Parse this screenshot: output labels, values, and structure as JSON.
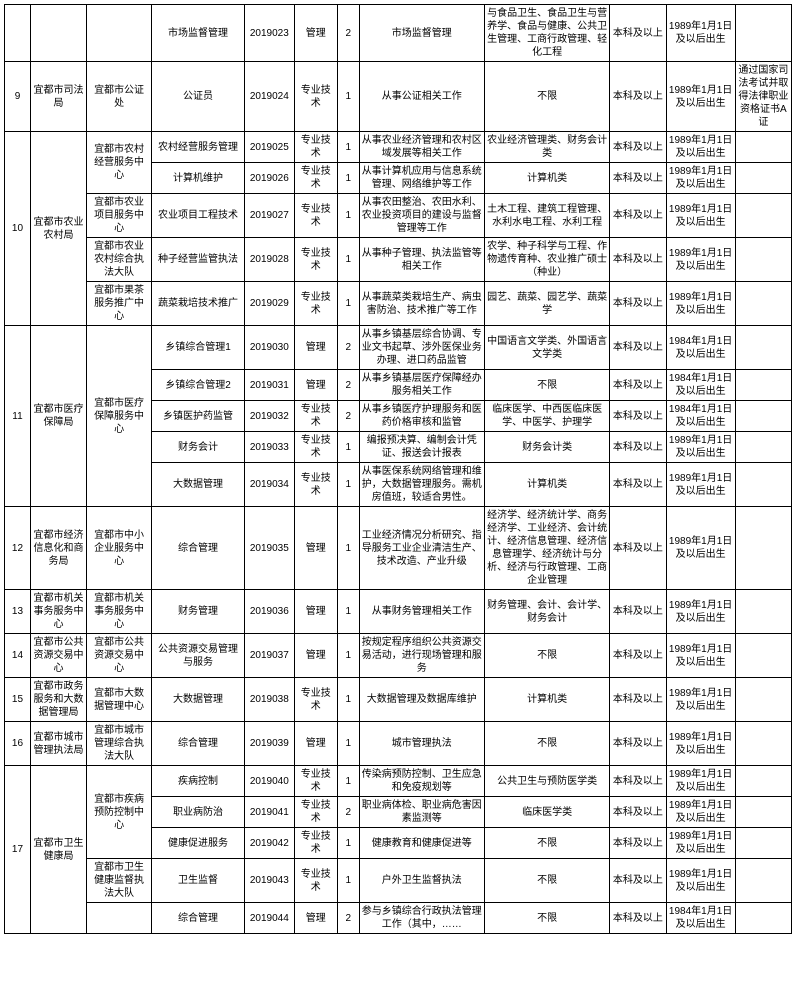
{
  "columns": [
    {
      "cls": "c0"
    },
    {
      "cls": "c1"
    },
    {
      "cls": "c2"
    },
    {
      "cls": "c3"
    },
    {
      "cls": "c4"
    },
    {
      "cls": "c5"
    },
    {
      "cls": "c6"
    },
    {
      "cls": "c7"
    },
    {
      "cls": "c8"
    },
    {
      "cls": "c9"
    },
    {
      "cls": "c10"
    },
    {
      "cls": "c11"
    }
  ],
  "rows": [
    [
      {
        "t": ""
      },
      {
        "t": ""
      },
      {
        "t": ""
      },
      {
        "t": "市场监督管理"
      },
      {
        "t": "2019023"
      },
      {
        "t": "管理"
      },
      {
        "t": "2"
      },
      {
        "t": "市场监督管理"
      },
      {
        "t": "与食品卫生、食品卫生与营养学、食品与健康、公共卫生管理、工商行政管理、轻化工程"
      },
      {
        "t": "本科及以上"
      },
      {
        "t": "1989年1月1日及以后出生"
      },
      {
        "t": ""
      }
    ],
    [
      {
        "t": "9"
      },
      {
        "t": "宜都市司法局"
      },
      {
        "t": "宜都市公证处"
      },
      {
        "t": "公证员"
      },
      {
        "t": "2019024"
      },
      {
        "t": "专业技术"
      },
      {
        "t": "1"
      },
      {
        "t": "从事公证相关工作"
      },
      {
        "t": "不限"
      },
      {
        "t": "本科及以上"
      },
      {
        "t": "1989年1月1日及以后出生"
      },
      {
        "t": "通过国家司法考试并取得法律职业资格证书A证"
      }
    ],
    [
      {
        "t": "10",
        "rs": 5
      },
      {
        "t": "宜都市农业农村局",
        "rs": 5
      },
      {
        "t": "宜都市农村经营服务中心",
        "rs": 2
      },
      {
        "t": "农村经营服务管理"
      },
      {
        "t": "2019025"
      },
      {
        "t": "专业技术"
      },
      {
        "t": "1"
      },
      {
        "t": "从事农业经济管理和农村区域发展等相关工作"
      },
      {
        "t": "农业经济管理类、财务会计类"
      },
      {
        "t": "本科及以上"
      },
      {
        "t": "1989年1月1日及以后出生"
      },
      {
        "t": ""
      }
    ],
    [
      {
        "t": "计算机维护"
      },
      {
        "t": "2019026"
      },
      {
        "t": "专业技术"
      },
      {
        "t": "1"
      },
      {
        "t": "从事计算机应用与信息系统管理、网络维护等工作"
      },
      {
        "t": "计算机类"
      },
      {
        "t": "本科及以上"
      },
      {
        "t": "1989年1月1日及以后出生"
      },
      {
        "t": ""
      }
    ],
    [
      {
        "t": "宜都市农业项目服务中心"
      },
      {
        "t": "农业项目工程技术"
      },
      {
        "t": "2019027"
      },
      {
        "t": "专业技术"
      },
      {
        "t": "1"
      },
      {
        "t": "从事农田整治、农田水利、农业投资项目的建设与监督管理等工作"
      },
      {
        "t": "土木工程、建筑工程管理、水利水电工程、水利工程"
      },
      {
        "t": "本科及以上"
      },
      {
        "t": "1989年1月1日及以后出生"
      },
      {
        "t": ""
      }
    ],
    [
      {
        "t": "宜都市农业农村综合执法大队"
      },
      {
        "t": "种子经营监管执法"
      },
      {
        "t": "2019028"
      },
      {
        "t": "专业技术"
      },
      {
        "t": "1"
      },
      {
        "t": "从事种子管理、执法监管等相关工作"
      },
      {
        "t": "农学、种子科学与工程、作物遗传育种、农业推广硕士（种业）"
      },
      {
        "t": "本科及以上"
      },
      {
        "t": "1989年1月1日及以后出生"
      },
      {
        "t": ""
      }
    ],
    [
      {
        "t": "宜都市果茶服务推广中心"
      },
      {
        "t": "蔬菜栽培技术推广"
      },
      {
        "t": "2019029"
      },
      {
        "t": "专业技术"
      },
      {
        "t": "1"
      },
      {
        "t": "从事蔬菜类栽培生产、病虫害防治、技术推广等工作"
      },
      {
        "t": "园艺、蔬菜、园艺学、蔬菜学"
      },
      {
        "t": "本科及以上"
      },
      {
        "t": "1989年1月1日及以后出生"
      },
      {
        "t": ""
      }
    ],
    [
      {
        "t": "11",
        "rs": 5
      },
      {
        "t": "宜都市医疗保障局",
        "rs": 5
      },
      {
        "t": "宜都市医疗保障服务中心",
        "rs": 5
      },
      {
        "t": "乡镇综合管理1"
      },
      {
        "t": "2019030"
      },
      {
        "t": "管理"
      },
      {
        "t": "2"
      },
      {
        "t": "从事乡镇基层综合协调、专业文书起草、涉外医保业务办理、进口药品监管"
      },
      {
        "t": "中国语言文学类、外国语言文学类"
      },
      {
        "t": "本科及以上"
      },
      {
        "t": "1984年1月1日及以后出生"
      },
      {
        "t": ""
      }
    ],
    [
      {
        "t": "乡镇综合管理2"
      },
      {
        "t": "2019031"
      },
      {
        "t": "管理"
      },
      {
        "t": "2"
      },
      {
        "t": "从事乡镇基层医疗保障经办服务相关工作"
      },
      {
        "t": "不限"
      },
      {
        "t": "本科及以上"
      },
      {
        "t": "1984年1月1日及以后出生"
      },
      {
        "t": ""
      }
    ],
    [
      {
        "t": "乡镇医护药监管"
      },
      {
        "t": "2019032"
      },
      {
        "t": "专业技术"
      },
      {
        "t": "2"
      },
      {
        "t": "从事乡镇医疗护理服务和医药价格审核和监管"
      },
      {
        "t": "临床医学、中西医临床医学、中医学、护理学"
      },
      {
        "t": "本科及以上"
      },
      {
        "t": "1984年1月1日及以后出生"
      },
      {
        "t": ""
      }
    ],
    [
      {
        "t": "财务会计"
      },
      {
        "t": "2019033"
      },
      {
        "t": "专业技术"
      },
      {
        "t": "1"
      },
      {
        "t": "编报预决算、编制会计凭证、报送会计报表"
      },
      {
        "t": "财务会计类"
      },
      {
        "t": "本科及以上"
      },
      {
        "t": "1989年1月1日及以后出生"
      },
      {
        "t": ""
      }
    ],
    [
      {
        "t": "大数据管理"
      },
      {
        "t": "2019034"
      },
      {
        "t": "专业技术"
      },
      {
        "t": "1"
      },
      {
        "t": "从事医保系统网络管理和维护，大数据管理服务。需机房值班，较适合男性。"
      },
      {
        "t": "计算机类"
      },
      {
        "t": "本科及以上"
      },
      {
        "t": "1989年1月1日及以后出生"
      },
      {
        "t": ""
      }
    ],
    [
      {
        "t": "12"
      },
      {
        "t": "宜都市经济信息化和商务局"
      },
      {
        "t": "宜都市中小企业服务中心"
      },
      {
        "t": "综合管理"
      },
      {
        "t": "2019035"
      },
      {
        "t": "管理"
      },
      {
        "t": "1"
      },
      {
        "t": "工业经济情况分析研究、指导服务工业企业清洁生产、技术改造、产业升级"
      },
      {
        "t": "经济学、经济统计学、商务经济学、工业经济、会计统计、经济信息管理、经济信息管理学、经济统计与分析、经济与行政管理、工商企业管理"
      },
      {
        "t": "本科及以上"
      },
      {
        "t": "1989年1月1日及以后出生"
      },
      {
        "t": ""
      }
    ],
    [
      {
        "t": "13"
      },
      {
        "t": "宜都市机关事务服务中心"
      },
      {
        "t": "宜都市机关事务服务中心"
      },
      {
        "t": "财务管理"
      },
      {
        "t": "2019036"
      },
      {
        "t": "管理"
      },
      {
        "t": "1"
      },
      {
        "t": "从事财务管理相关工作"
      },
      {
        "t": "财务管理、会计、会计学、财务会计"
      },
      {
        "t": "本科及以上"
      },
      {
        "t": "1989年1月1日及以后出生"
      },
      {
        "t": ""
      }
    ],
    [
      {
        "t": "14"
      },
      {
        "t": "宜都市公共资源交易中心"
      },
      {
        "t": "宜都市公共资源交易中心"
      },
      {
        "t": "公共资源交易管理与服务"
      },
      {
        "t": "2019037"
      },
      {
        "t": "管理"
      },
      {
        "t": "1"
      },
      {
        "t": "按规定程序组织公共资源交易活动，进行现场管理和服务"
      },
      {
        "t": "不限"
      },
      {
        "t": "本科及以上"
      },
      {
        "t": "1989年1月1日及以后出生"
      },
      {
        "t": ""
      }
    ],
    [
      {
        "t": "15"
      },
      {
        "t": "宜都市政务服务和大数据管理局"
      },
      {
        "t": "宜都市大数据管理中心"
      },
      {
        "t": "大数据管理"
      },
      {
        "t": "2019038"
      },
      {
        "t": "专业技术"
      },
      {
        "t": "1"
      },
      {
        "t": "大数据管理及数据库维护"
      },
      {
        "t": "计算机类"
      },
      {
        "t": "本科及以上"
      },
      {
        "t": "1989年1月1日及以后出生"
      },
      {
        "t": ""
      }
    ],
    [
      {
        "t": "16"
      },
      {
        "t": "宜都市城市管理执法局"
      },
      {
        "t": "宜都市城市管理综合执法大队"
      },
      {
        "t": "综合管理"
      },
      {
        "t": "2019039"
      },
      {
        "t": "管理"
      },
      {
        "t": "1"
      },
      {
        "t": "城市管理执法"
      },
      {
        "t": "不限"
      },
      {
        "t": "本科及以上"
      },
      {
        "t": "1989年1月1日及以后出生"
      },
      {
        "t": ""
      }
    ],
    [
      {
        "t": "17",
        "rs": 5
      },
      {
        "t": "宜都市卫生健康局",
        "rs": 5
      },
      {
        "t": "宜都市疾病预防控制中心",
        "rs": 3
      },
      {
        "t": "疾病控制"
      },
      {
        "t": "2019040"
      },
      {
        "t": "专业技术"
      },
      {
        "t": "1"
      },
      {
        "t": "传染病预防控制、卫生应急和免疫规划等"
      },
      {
        "t": "公共卫生与预防医学类"
      },
      {
        "t": "本科及以上"
      },
      {
        "t": "1989年1月1日及以后出生"
      },
      {
        "t": ""
      }
    ],
    [
      {
        "t": "职业病防治"
      },
      {
        "t": "2019041"
      },
      {
        "t": "专业技术"
      },
      {
        "t": "2"
      },
      {
        "t": "职业病体检、职业病危害因素监测等"
      },
      {
        "t": "临床医学类"
      },
      {
        "t": "本科及以上"
      },
      {
        "t": "1989年1月1日及以后出生"
      },
      {
        "t": ""
      }
    ],
    [
      {
        "t": "健康促进服务"
      },
      {
        "t": "2019042"
      },
      {
        "t": "专业技术"
      },
      {
        "t": "1"
      },
      {
        "t": "健康教育和健康促进等"
      },
      {
        "t": "不限"
      },
      {
        "t": "本科及以上"
      },
      {
        "t": "1989年1月1日及以后出生"
      },
      {
        "t": ""
      }
    ],
    [
      {
        "t": "宜都市卫生健康监督执法大队"
      },
      {
        "t": "卫生监督"
      },
      {
        "t": "2019043"
      },
      {
        "t": "专业技术"
      },
      {
        "t": "1"
      },
      {
        "t": "户外卫生监督执法"
      },
      {
        "t": "不限"
      },
      {
        "t": "本科及以上"
      },
      {
        "t": "1989年1月1日及以后出生"
      },
      {
        "t": ""
      }
    ],
    [
      {
        "t": ""
      },
      {
        "t": "综合管理"
      },
      {
        "t": "2019044"
      },
      {
        "t": "管理"
      },
      {
        "t": "2"
      },
      {
        "t": "参与乡镇综合行政执法管理工作（其中，……"
      },
      {
        "t": "不限"
      },
      {
        "t": "本科及以上"
      },
      {
        "t": "1984年1月1日及以后出生"
      },
      {
        "t": ""
      }
    ]
  ]
}
